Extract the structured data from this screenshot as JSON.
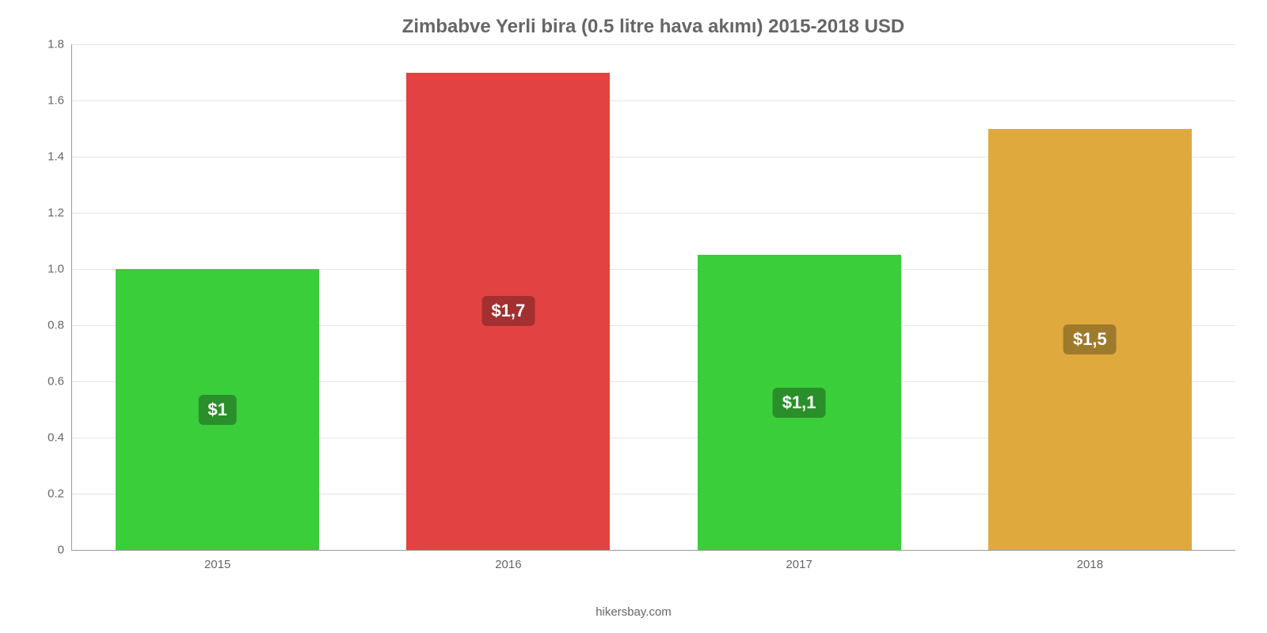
{
  "chart": {
    "type": "bar",
    "title": "Zimbabve Yerli bira (0.5 litre hava akımı) 2015-2018 USD",
    "title_color": "#666666",
    "title_fontsize": 24,
    "background_color": "#ffffff",
    "plot_border_color": "#9a9a9a",
    "grid_color": "#e5e5e5",
    "ylim": [
      0,
      1.8
    ],
    "yticks": [
      0,
      0.2,
      0.4,
      0.6,
      0.8,
      1.0,
      1.2,
      1.4,
      1.6,
      1.8
    ],
    "ytick_labels": [
      "0",
      "0.2",
      "0.4",
      "0.6",
      "0.8",
      "1.0",
      "1.2",
      "1.4",
      "1.6",
      "1.8"
    ],
    "tick_color": "#666666",
    "tick_fontsize": 15,
    "bar_width_ratio": 0.7,
    "categories": [
      "2015",
      "2016",
      "2017",
      "2018"
    ],
    "values": [
      1.0,
      1.7,
      1.05,
      1.5
    ],
    "value_labels": [
      "$1",
      "$1,7",
      "$1,1",
      "$1,5"
    ],
    "bar_colors": [
      "#3bce3b",
      "#e34242",
      "#3bce3b",
      "#e0a93e"
    ],
    "label_bg_colors": [
      "#2a8f2a",
      "#a23030",
      "#2a8f2a",
      "#9e7a2c"
    ],
    "label_text_color": "#ffffff",
    "label_fontsize": 22,
    "source": "hikersbay.com",
    "source_color": "#666666",
    "source_fontsize": 15
  }
}
